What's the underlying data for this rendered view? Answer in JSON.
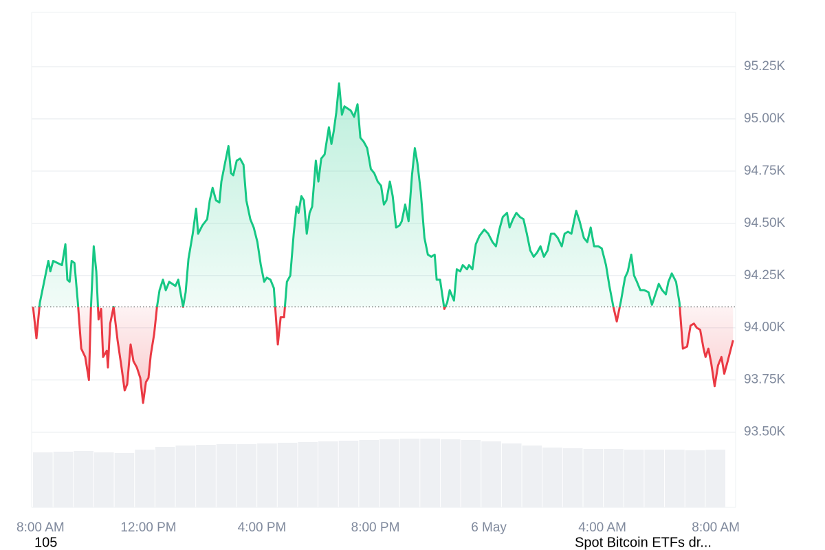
{
  "chart_data": {
    "type": "line",
    "x": [
      -0.07,
      0.05,
      0.17,
      0.32,
      0.47,
      0.54,
      0.64,
      0.95,
      1.07,
      1.14,
      1.22,
      1.29,
      1.39,
      1.51,
      1.63,
      1.77,
      1.9,
      1.97,
      2.07,
      2.16,
      2.24,
      2.33,
      2.4,
      2.53,
      2.57,
      2.65,
      2.77,
      2.91,
      3.04,
      3.16,
      3.25,
      3.37,
      3.47,
      3.59,
      3.71,
      3.81,
      3.91,
      4.0,
      4.08,
      4.2,
      4.3,
      4.39,
      4.51,
      4.61,
      4.73,
      4.95,
      5.05,
      5.22,
      5.31,
      5.41,
      5.56,
      5.68,
      5.75,
      5.9,
      6.07,
      6.16,
      6.26,
      6.38,
      6.5,
      6.57,
      6.7,
      6.82,
      6.91,
      6.99,
      7.11,
      7.23,
      7.35,
      7.45,
      7.59,
      7.71,
      7.84,
      7.96,
      8.08,
      8.17,
      8.3,
      8.42,
      8.56,
      8.66,
      8.78,
      8.88,
      9.0,
      9.12,
      9.22,
      9.29,
      9.39,
      9.48,
      9.58,
      9.68,
      9.77,
      9.9,
      9.99,
      10.09,
      10.21,
      10.36,
      10.45,
      10.53,
      10.62,
      10.72,
      10.82,
      10.91,
      11.13,
      11.25,
      11.37,
      11.47,
      11.59,
      11.71,
      11.84,
      11.96,
      12.08,
      12.2,
      12.3,
      12.39,
      12.51,
      12.61,
      12.73,
      12.85,
      12.93,
      13.05,
      13.17,
      13.29,
      13.39,
      13.48,
      13.6,
      13.73,
      13.85,
      13.97,
      14.09,
      14.16,
      14.28,
      14.43,
      14.53,
      14.62,
      14.77,
      14.87,
      14.99,
      15.08,
      15.23,
      15.3,
      15.42,
      15.54,
      15.67,
      15.84,
      15.98,
      16.13,
      16.25,
      16.37,
      16.49,
      16.64,
      16.73,
      16.85,
      16.97,
      17.1,
      17.22,
      17.34,
      17.46,
      17.58,
      17.7,
      17.82,
      17.94,
      18.07,
      18.19,
      18.31,
      18.43,
      18.57,
      18.67,
      18.79,
      18.91,
      19.08,
      19.2,
      19.35,
      19.47,
      19.59,
      19.71,
      19.86,
      19.98,
      20.13,
      20.25,
      20.39,
      20.51,
      20.66,
      20.8,
      20.9,
      21.02,
      21.12,
      21.22,
      21.34,
      21.48,
      21.63,
      21.75,
      21.87,
      21.99,
      22.11,
      22.24,
      22.33,
      22.45,
      22.6,
      22.72,
      22.84,
      22.99,
      23.11,
      23.23,
      23.33,
      23.45,
      23.57,
      23.64,
      23.74,
      23.84,
      23.96,
      24.08,
      24.2,
      24.3,
      24.42,
      24.61
    ],
    "values": [
      94.1,
      93.95,
      94.12,
      94.22,
      94.32,
      94.27,
      94.32,
      94.3,
      94.4,
      94.23,
      94.22,
      94.32,
      94.31,
      94.12,
      93.9,
      93.86,
      93.75,
      94.09,
      94.39,
      94.27,
      94.04,
      94.09,
      93.86,
      93.89,
      93.81,
      94.02,
      94.1,
      93.94,
      93.82,
      93.7,
      93.73,
      93.92,
      93.84,
      93.81,
      93.76,
      93.64,
      93.74,
      93.76,
      93.87,
      93.97,
      94.1,
      94.18,
      94.23,
      94.18,
      94.22,
      94.2,
      94.23,
      94.1,
      94.17,
      94.33,
      94.45,
      94.57,
      94.45,
      94.49,
      94.52,
      94.61,
      94.67,
      94.61,
      94.6,
      94.7,
      94.79,
      94.87,
      94.74,
      94.73,
      94.8,
      94.81,
      94.78,
      94.61,
      94.52,
      94.48,
      94.41,
      94.3,
      94.22,
      94.24,
      94.23,
      94.19,
      93.92,
      94.05,
      94.05,
      94.22,
      94.25,
      94.45,
      94.58,
      94.55,
      94.63,
      94.61,
      94.45,
      94.55,
      94.58,
      94.8,
      94.7,
      94.81,
      94.83,
      94.96,
      94.88,
      94.94,
      95.03,
      95.17,
      95.02,
      95.06,
      95.04,
      95.01,
      95.07,
      94.91,
      94.89,
      94.86,
      94.76,
      94.74,
      94.7,
      94.68,
      94.59,
      94.61,
      94.7,
      94.63,
      94.48,
      94.49,
      94.51,
      94.59,
      94.51,
      94.73,
      94.86,
      94.79,
      94.65,
      94.43,
      94.35,
      94.34,
      94.35,
      94.23,
      94.23,
      94.09,
      94.12,
      94.18,
      94.13,
      94.28,
      94.27,
      94.3,
      94.28,
      94.3,
      94.28,
      94.4,
      94.44,
      94.47,
      94.45,
      94.41,
      94.39,
      94.47,
      94.53,
      94.55,
      94.48,
      94.52,
      94.55,
      94.53,
      94.52,
      94.45,
      94.37,
      94.34,
      94.36,
      94.39,
      94.34,
      94.37,
      94.45,
      94.45,
      94.43,
      94.39,
      94.45,
      94.46,
      94.45,
      94.56,
      94.51,
      94.43,
      94.41,
      94.48,
      94.39,
      94.39,
      94.38,
      94.3,
      94.2,
      94.1,
      94.03,
      94.13,
      94.24,
      94.27,
      94.35,
      94.25,
      94.22,
      94.18,
      94.18,
      94.17,
      94.11,
      94.16,
      94.21,
      94.18,
      94.16,
      94.22,
      94.26,
      94.22,
      94.12,
      93.9,
      93.91,
      94.01,
      94.02,
      94.0,
      93.99,
      93.9,
      93.86,
      93.9,
      93.83,
      93.72,
      93.82,
      93.86,
      93.78,
      93.84,
      93.94
    ],
    "baseline": 94.1,
    "colors": {
      "above": "#16c784",
      "below": "#ea3943",
      "volume": "#eef0f3"
    },
    "volume": {
      "values": [
        80,
        81,
        82,
        80,
        79,
        84,
        88,
        90,
        91,
        92,
        92,
        93,
        94,
        95,
        96,
        97,
        98,
        99,
        100,
        100,
        99,
        98,
        96,
        93,
        90,
        87,
        86,
        85,
        85,
        84,
        84,
        84,
        83,
        84
      ],
      "ylim": [
        0,
        110
      ]
    },
    "xlim": [
      -0.12,
      24.7
    ],
    "xticks": [
      {
        "value": 0,
        "label": "8:00 AM"
      },
      {
        "value": 4,
        "label": "12:00 PM"
      },
      {
        "value": 8,
        "label": "4:00 PM"
      },
      {
        "value": 12,
        "label": "8:00 PM"
      },
      {
        "value": 16,
        "label": "6 May"
      },
      {
        "value": 20,
        "label": "4:00 AM"
      },
      {
        "value": 24,
        "label": "8:00 AM"
      }
    ],
    "ylim": [
      93.14,
      95.51
    ],
    "yticks": [
      {
        "value": 93.5,
        "label": "93.50K"
      },
      {
        "value": 93.75,
        "label": "93.75K"
      },
      {
        "value": 94,
        "label": "94.00K"
      },
      {
        "value": 94.25,
        "label": "94.25K"
      },
      {
        "value": 94.5,
        "label": "94.50K"
      },
      {
        "value": 94.75,
        "label": "94.75K"
      },
      {
        "value": 95,
        "label": "95.00K"
      },
      {
        "value": 95.25,
        "label": "95.25K"
      }
    ],
    "grid": true,
    "annotations": [
      "105",
      "Spot Bitcoin ETFs dr..."
    ]
  }
}
